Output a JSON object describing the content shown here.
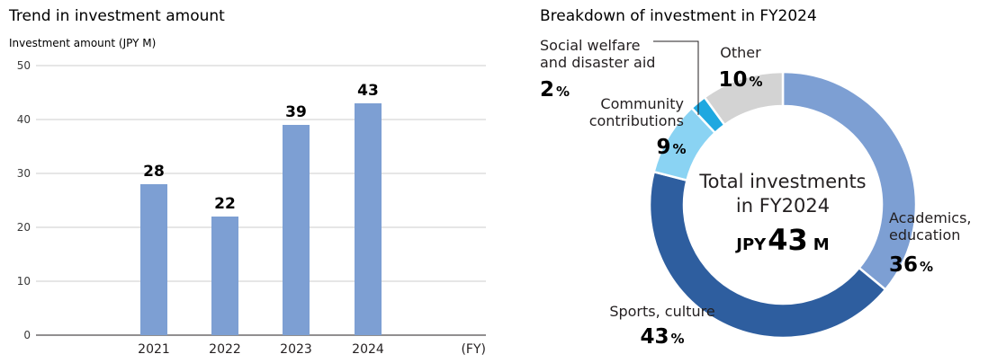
{
  "chart_data": [
    {
      "type": "bar",
      "title": "Trend in investment amount",
      "ylabel": "Investment amount (JPY M)",
      "xlabel": "(FY)",
      "categories": [
        "2021",
        "2022",
        "2023",
        "2024"
      ],
      "values": [
        28,
        22,
        39,
        43
      ],
      "ylim": [
        0,
        50
      ],
      "yticks": [
        0,
        10,
        20,
        30,
        40,
        50
      ],
      "grid": true,
      "color": "#7d9fd3"
    },
    {
      "type": "pie",
      "title": "Breakdown of investment in FY2024",
      "center_text": {
        "line1": "Total investments",
        "line2": "in FY2024",
        "prefix": "JPY",
        "amount": "43",
        "suffix": "M"
      },
      "slices": [
        {
          "key": "academics",
          "label_lines": [
            "Academics,",
            "education"
          ],
          "value": 36,
          "color": "#7d9fd3"
        },
        {
          "key": "sports",
          "label_lines": [
            "Sports, culture"
          ],
          "value": 43,
          "color": "#2e5e9f"
        },
        {
          "key": "community",
          "label_lines": [
            "Community",
            "contributions"
          ],
          "value": 9,
          "color": "#8ad3f3"
        },
        {
          "key": "social",
          "label_lines": [
            "Social welfare",
            "and disaster aid"
          ],
          "value": 2,
          "color": "#1fa8e0"
        },
        {
          "key": "other",
          "label_lines": [
            "Other"
          ],
          "value": 10,
          "color": "#d3d3d3"
        }
      ],
      "percent_sign": "%"
    }
  ]
}
